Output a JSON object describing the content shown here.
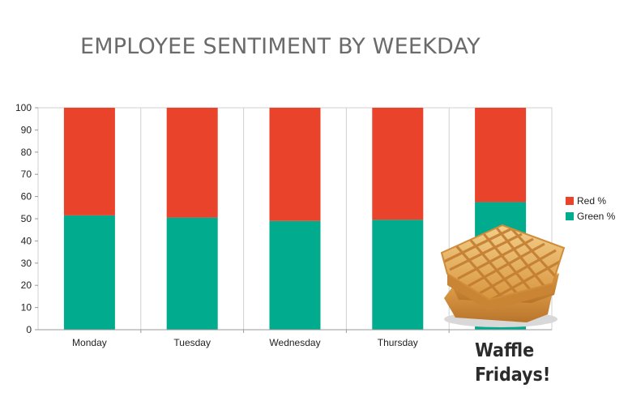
{
  "chart_data": {
    "type": "bar",
    "stacked": true,
    "title": "EMPLOYEE SENTIMENT BY WEEKDAY",
    "categories": [
      "Monday",
      "Tuesday",
      "Wednesday",
      "Thursday",
      "Friday"
    ],
    "category_labels": [
      "Monday",
      "Tuesday",
      "Wednesday",
      "Thursday",
      ""
    ],
    "series": [
      {
        "name": "Green %",
        "values": [
          51.5,
          50.5,
          49,
          49.5,
          57.5
        ],
        "color": "#00ab8e"
      },
      {
        "name": "Red %",
        "values": [
          48.5,
          49.5,
          51,
          50.5,
          42.5
        ],
        "color": "#ea432b"
      }
    ],
    "legend_order": [
      "Red %",
      "Green %"
    ],
    "legend_position": "right",
    "ylim": [
      0,
      100
    ],
    "yticks": [
      0,
      10,
      20,
      30,
      40,
      50,
      60,
      70,
      80,
      90,
      100
    ],
    "grid": "vertical lines between categories",
    "annotation": {
      "text_lines": [
        "Waffle",
        "Fridays!"
      ],
      "image": "waffle-stack"
    }
  }
}
